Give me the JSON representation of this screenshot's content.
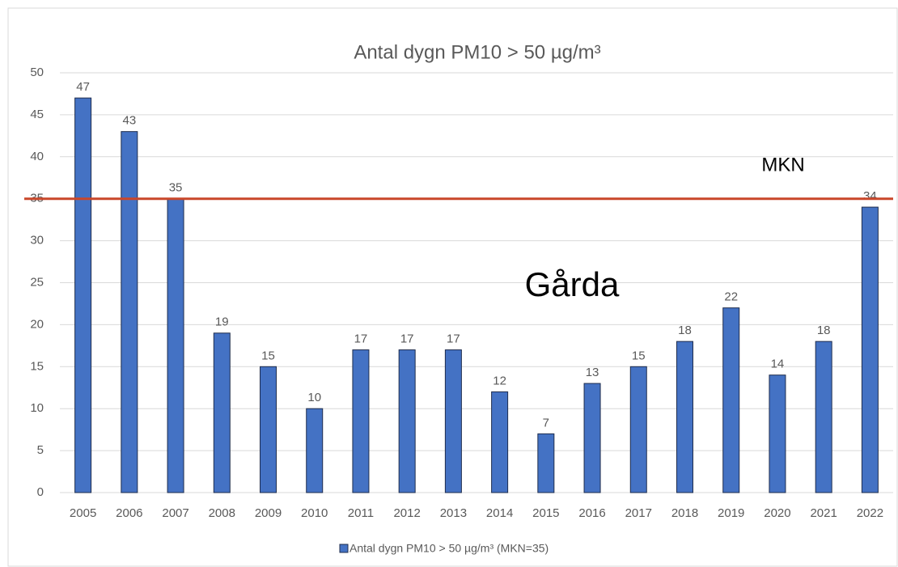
{
  "chart_data": {
    "type": "bar",
    "title": "Antal dygn PM10  > 50 µg/m³",
    "categories": [
      "2005",
      "2006",
      "2007",
      "2008",
      "2009",
      "2010",
      "2011",
      "2012",
      "2013",
      "2014",
      "2015",
      "2016",
      "2017",
      "2018",
      "2019",
      "2020",
      "2021",
      "2022"
    ],
    "series": [
      {
        "name": "Antal dygn PM10 > 50 µg/m³ (MKN=35)",
        "color": "#4472c4",
        "values": [
          47,
          43,
          35,
          19,
          15,
          10,
          17,
          17,
          17,
          12,
          7,
          13,
          15,
          18,
          22,
          14,
          18,
          34
        ]
      }
    ],
    "ylim": [
      0,
      50
    ],
    "yticks": [
      0,
      5,
      10,
      15,
      20,
      25,
      30,
      35,
      40,
      45,
      50
    ],
    "grid": true,
    "reference_line": {
      "value": 35,
      "label": "MKN",
      "color": "#c9472a"
    },
    "annotation": "Gårda",
    "legend": "bottom"
  }
}
